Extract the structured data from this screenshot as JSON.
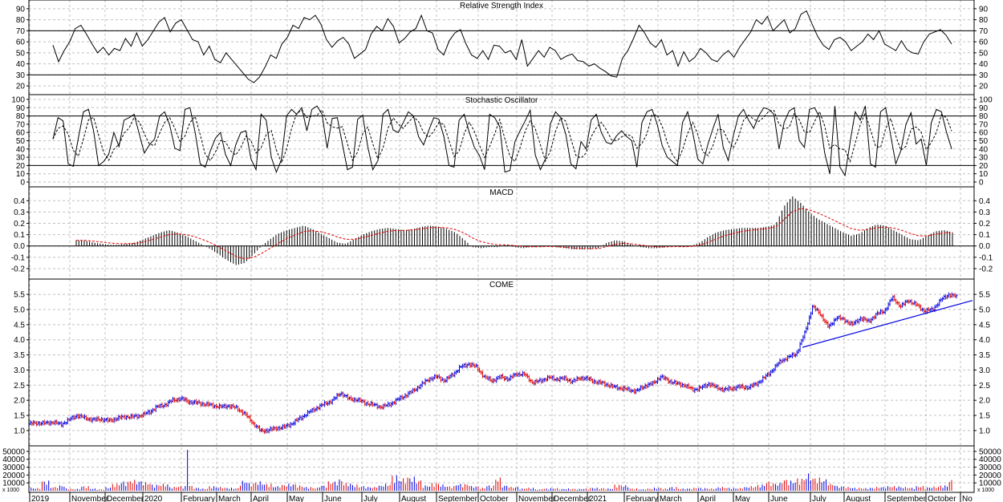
{
  "chart_data": [
    {
      "type": "line",
      "title": "Relative Strength Index",
      "ylim": [
        15,
        95
      ],
      "yticks": [
        20,
        30,
        40,
        50,
        60,
        70,
        80,
        90
      ],
      "reference_lines": [
        30,
        70
      ],
      "series": [
        {
          "values": [
            57,
            42,
            52,
            60,
            72,
            75,
            67,
            58,
            50,
            55,
            48,
            54,
            52,
            63,
            56,
            68,
            56,
            62,
            70,
            78,
            82,
            69,
            77,
            80,
            71,
            62,
            60,
            48,
            56,
            44,
            41,
            50,
            44,
            38,
            32,
            26,
            23,
            28,
            37,
            48,
            45,
            58,
            64,
            75,
            72,
            82,
            80,
            84,
            76,
            62,
            55,
            61,
            64,
            58,
            45,
            49,
            53,
            67,
            74,
            70,
            81,
            74,
            59,
            63,
            69,
            72,
            84,
            70,
            68,
            53,
            48,
            61,
            68,
            71,
            58,
            48,
            45,
            52,
            44,
            57,
            56,
            50,
            52,
            44,
            62,
            38,
            45,
            52,
            46,
            55,
            52,
            44,
            47,
            49,
            43,
            42,
            38,
            40,
            36,
            33,
            29,
            28,
            45,
            52,
            63,
            75,
            68,
            59,
            55,
            62,
            48,
            52,
            38,
            51,
            42,
            46,
            54,
            50,
            44,
            42,
            48,
            52,
            46,
            55,
            62,
            69,
            80,
            76,
            83,
            70,
            75,
            80,
            68,
            72,
            85,
            88,
            76,
            65,
            57,
            53,
            62,
            64,
            60,
            52,
            56,
            60,
            67,
            62,
            70,
            58,
            55,
            52,
            61,
            53,
            50,
            49,
            60,
            67,
            69,
            71,
            66,
            58
          ]
        }
      ]
    },
    {
      "type": "line",
      "title": "Stochastic Oscillator",
      "ylim": [
        0,
        100
      ],
      "yticks": [
        0,
        10,
        20,
        30,
        40,
        50,
        60,
        70,
        80,
        90,
        100
      ],
      "reference_lines": [
        20,
        80
      ],
      "series": [
        {
          "values": [
            52,
            78,
            74,
            22,
            19,
            53,
            85,
            88,
            62,
            20,
            25,
            34,
            60,
            43,
            75,
            78,
            82,
            58,
            35,
            45,
            52,
            80,
            85,
            69,
            41,
            38,
            88,
            90,
            60,
            22,
            18,
            38,
            53,
            60,
            33,
            20,
            45,
            60,
            62,
            28,
            15,
            82,
            75,
            30,
            12,
            27,
            80,
            88,
            82,
            90,
            62,
            88,
            92,
            82,
            41,
            77,
            78,
            46,
            15,
            18,
            76,
            81,
            43,
            15,
            26,
            82,
            88,
            63,
            60,
            72,
            85,
            80,
            55,
            45,
            62,
            78,
            76,
            55,
            20,
            18,
            75,
            82,
            60,
            42,
            32,
            15,
            82,
            78,
            67,
            12,
            14,
            49,
            62,
            74,
            87,
            33,
            15,
            28,
            71,
            85,
            78,
            58,
            22,
            16,
            49,
            40,
            75,
            82,
            60,
            48,
            46,
            56,
            62,
            55,
            50,
            18,
            72,
            85,
            88,
            70,
            44,
            30,
            25,
            20,
            72,
            85,
            60,
            28,
            22,
            46,
            65,
            82,
            42,
            26,
            56,
            80,
            88,
            75,
            65,
            80,
            90,
            88,
            82,
            40,
            72,
            86,
            90,
            50,
            42,
            88,
            90,
            78,
            35,
            10,
            92,
            18,
            8,
            48,
            85,
            75,
            92,
            22,
            18,
            85,
            90,
            56,
            22,
            38,
            70,
            84,
            46,
            52,
            20,
            72,
            88,
            85,
            60,
            40
          ]
        }
      ]
    },
    {
      "type": "bar",
      "title": "MACD",
      "ylim": [
        -0.25,
        0.48
      ],
      "yticks": [
        -0.2,
        -0.1,
        0.0,
        0.1,
        0.2,
        0.3,
        0.4
      ],
      "series": [
        {
          "values": [
            0.05,
            0.05,
            0.03,
            0.02,
            0.01,
            0.01,
            0.02,
            0.03,
            0.06,
            0.09,
            0.12,
            0.14,
            0.12,
            0.09,
            0.05,
            0.01,
            -0.03,
            -0.08,
            -0.13,
            -0.17,
            -0.15,
            -0.08,
            0.0,
            0.06,
            0.11,
            0.14,
            0.16,
            0.18,
            0.15,
            0.11,
            0.07,
            0.03,
            0.02,
            0.06,
            0.1,
            0.13,
            0.15,
            0.16,
            0.15,
            0.14,
            0.15,
            0.17,
            0.18,
            0.17,
            0.15,
            0.12,
            0.06,
            -0.01,
            -0.02,
            -0.01,
            -0.01,
            0.01,
            -0.01,
            -0.02,
            -0.01,
            -0.01,
            0.0,
            -0.01,
            -0.02,
            -0.03,
            -0.03,
            -0.03,
            -0.02,
            0.03,
            0.05,
            0.04,
            0.01,
            -0.01,
            -0.02,
            -0.02,
            -0.01,
            0.0,
            -0.01,
            0.0,
            0.03,
            0.08,
            0.12,
            0.14,
            0.15,
            0.16,
            0.16,
            0.16,
            0.17,
            0.19,
            0.35,
            0.44,
            0.38,
            0.3,
            0.24,
            0.2,
            0.16,
            0.12,
            0.09,
            0.11,
            0.16,
            0.19,
            0.18,
            0.14,
            0.1,
            0.06,
            0.05,
            0.09,
            0.13,
            0.14,
            0.12
          ]
        }
      ]
    },
    {
      "type": "line",
      "title": "COME",
      "ylim": [
        0.6,
        5.9
      ],
      "yticks": [
        1.0,
        1.5,
        2.0,
        2.5,
        3.0,
        3.5,
        4.0,
        4.5,
        5.0,
        5.5
      ],
      "series": [
        {
          "values": [
            1.22,
            1.25,
            1.24,
            1.28,
            1.2,
            1.35,
            1.5,
            1.42,
            1.35,
            1.38,
            1.32,
            1.4,
            1.46,
            1.45,
            1.5,
            1.6,
            1.78,
            1.85,
            2.0,
            2.06,
            1.95,
            1.92,
            1.87,
            1.83,
            1.78,
            1.82,
            1.74,
            1.55,
            1.26,
            0.98,
            1.02,
            1.08,
            1.12,
            1.25,
            1.42,
            1.6,
            1.75,
            1.88,
            2.0,
            2.25,
            2.05,
            2.02,
            1.92,
            1.85,
            1.78,
            1.85,
            2.0,
            2.15,
            2.3,
            2.5,
            2.7,
            2.78,
            2.65,
            2.85,
            3.1,
            3.2,
            3.1,
            2.75,
            2.65,
            2.78,
            2.7,
            2.88,
            2.85,
            2.58,
            2.65,
            2.75,
            2.7,
            2.72,
            2.62,
            2.75,
            2.7,
            2.6,
            2.55,
            2.45,
            2.4,
            2.35,
            2.3,
            2.48,
            2.55,
            2.78,
            2.65,
            2.55,
            2.5,
            2.35,
            2.4,
            2.55,
            2.42,
            2.35,
            2.4,
            2.45,
            2.42,
            2.55,
            2.75,
            3.0,
            3.3,
            3.42,
            3.55,
            4.2,
            5.1,
            4.85,
            4.4,
            4.75,
            4.65,
            4.5,
            4.72,
            4.6,
            4.85,
            4.95,
            5.4,
            5.1,
            5.3,
            5.15,
            4.95,
            5.0,
            5.3,
            5.5,
            5.42
          ]
        },
        {
          "name": "trend",
          "values": [
            3.75,
            5.3
          ]
        }
      ]
    },
    {
      "type": "bar",
      "title": "",
      "ylim": [
        0,
        55000
      ],
      "yticks": [
        10000,
        20000,
        30000,
        40000,
        50000
      ],
      "unit_label": "x 1000",
      "series": [
        {
          "values": [
            4000,
            3500,
            13000,
            5000,
            7000,
            3000,
            2500,
            6000,
            3000,
            2000,
            4500,
            9000,
            12000,
            14000,
            13000,
            11000,
            8000,
            9000,
            5000,
            6000,
            52000,
            4000,
            3000,
            6000,
            5000,
            4000,
            3500,
            13000,
            10000,
            12000,
            9000,
            6000,
            8000,
            9000,
            7000,
            5000,
            4000,
            7000,
            12000,
            15000,
            10000,
            8000,
            6000,
            5000,
            7000,
            9000,
            20000,
            16000,
            18000,
            14000,
            7000,
            10000,
            8000,
            6000,
            9000,
            9000,
            6000,
            4000,
            7000,
            17000,
            7000,
            5000,
            3000,
            4000,
            2000,
            3000,
            3500,
            2500,
            3000,
            2500,
            3000,
            4000,
            3500,
            3000,
            8000,
            7000,
            3000,
            2000,
            3000,
            4000,
            3000,
            5000,
            3000,
            3000,
            4000,
            3500,
            3000,
            5000,
            4000,
            3500,
            5000,
            6000,
            8000,
            12000,
            10000,
            15000,
            13000,
            16000,
            22000,
            17000,
            15000,
            9000,
            6000,
            5000,
            4000,
            3500,
            4000,
            5000,
            6000,
            6000,
            5000,
            4000,
            6000,
            4500,
            5500,
            7000,
            14000
          ]
        }
      ]
    }
  ],
  "x_axis": {
    "labels": [
      "2019",
      "November",
      "December",
      "2020",
      "February",
      "March",
      "April",
      "May",
      "June",
      "July",
      "August",
      "September",
      "October",
      "November",
      "December",
      "2021",
      "February",
      "March",
      "April",
      "May",
      "June",
      "July",
      "August",
      "September",
      "October",
      "No"
    ]
  }
}
